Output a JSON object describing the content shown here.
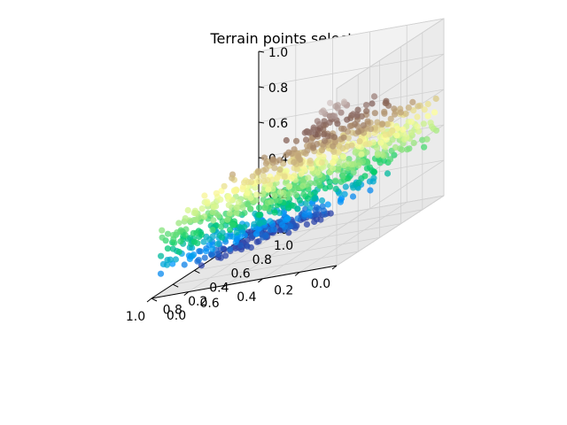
{
  "chart_data": {
    "type": "scatter",
    "projection": "3d",
    "title": "Terrain points selected",
    "xlabel": "",
    "ylabel": "",
    "zlabel": "",
    "xlim": [
      0,
      1
    ],
    "ylim": [
      0,
      1
    ],
    "zlim": [
      0,
      1
    ],
    "grid": true,
    "colormap": "terrain",
    "point_count": 1000,
    "x_ticks": [
      "0.0",
      "0.2",
      "0.4",
      "0.6",
      "0.8",
      "1.0"
    ],
    "y_ticks": [
      "0.0",
      "0.2",
      "0.4",
      "0.6",
      "0.8",
      "1.0"
    ],
    "z_ticks": [
      "0.0",
      "0.2",
      "0.4",
      "0.6",
      "0.8",
      "1.0"
    ],
    "pane_color": "#f2f2f2",
    "grid_color": "#d0d0d0",
    "colormap_stops": [
      "#333399",
      "#0099ff",
      "#00cc66",
      "#99e67f",
      "#ffff99",
      "#bfa378",
      "#805c54",
      "#bfaca9",
      "#ffffff"
    ]
  }
}
